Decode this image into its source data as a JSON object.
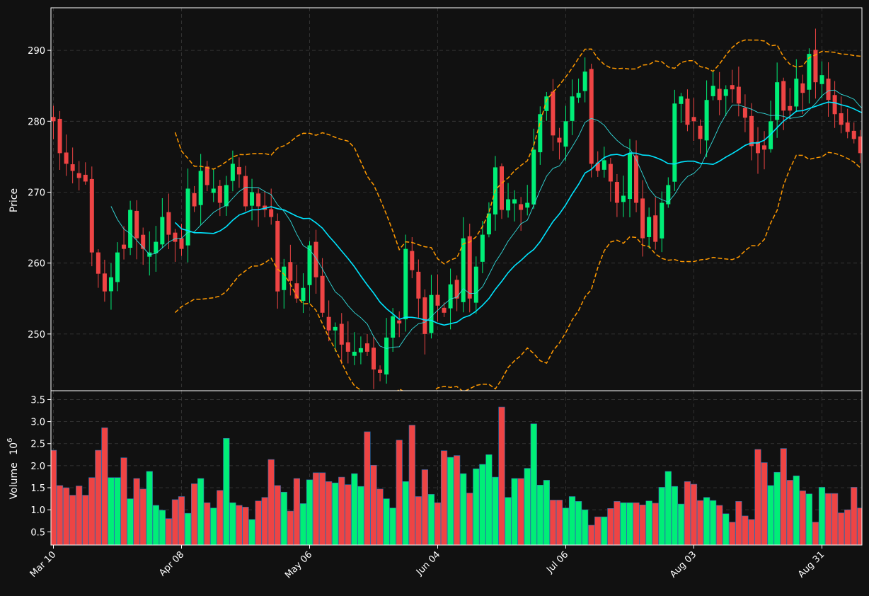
{
  "chart_data": {
    "type": "candlestick",
    "panels": {
      "price": {
        "ylabel": "Price",
        "ylim": [
          242,
          296
        ],
        "yticks": [
          250,
          260,
          270,
          280,
          290
        ]
      },
      "volume": {
        "ylabel": "Volume",
        "ylabel_exp": "6",
        "ylim": [
          0.2,
          3.7
        ],
        "yticks": [
          0.5,
          1.0,
          1.5,
          2.0,
          2.5,
          3.0,
          3.5
        ],
        "ytick_labels": [
          "0.5",
          "1.0",
          "1.5",
          "2.0",
          "2.5",
          "3.0",
          "3.5"
        ]
      }
    },
    "xticks": [
      {
        "index": 0,
        "label": "Mar 10"
      },
      {
        "index": 20,
        "label": "Apr 08"
      },
      {
        "index": 40,
        "label": "May 06"
      },
      {
        "index": 60,
        "label": "Jun 04"
      },
      {
        "index": 80,
        "label": "Jul 06"
      },
      {
        "index": 100,
        "label": "Aug 03"
      },
      {
        "index": 120,
        "label": "Aug 31"
      }
    ],
    "grid": true,
    "colors": {
      "up": "#00ee77",
      "down": "#ee4444",
      "ma_fast": "#33dddd",
      "ma_slow": "#00e5ff",
      "bands": "#ff9900",
      "background": "#111111",
      "text": "#ffffff"
    },
    "closes": [
      280.0,
      275.5,
      274.0,
      273.0,
      272.0,
      271.5,
      261.5,
      258.5,
      256.0,
      258.0,
      261.5,
      262.0,
      267.5,
      263.5,
      262.0,
      261.5,
      263.0,
      266.5,
      264.0,
      263.0,
      262.0,
      270.5,
      268.0,
      273.0,
      271.0,
      270.5,
      268.5,
      271.0,
      274.0,
      272.5,
      268.0,
      270.0,
      268.0,
      267.5,
      266.5,
      256.0,
      259.5,
      257.5,
      255.0,
      256.5,
      262.5,
      258.0,
      253.0,
      250.5,
      251.0,
      248.5,
      247.5,
      247.5,
      248.0,
      247.5,
      245.0,
      244.5,
      249.5,
      252.5,
      251.5,
      262.0,
      259.0,
      255.0,
      250.0,
      255.5,
      254.0,
      253.0,
      257.0,
      255.0,
      263.5,
      255.0,
      259.5,
      264.0,
      267.0,
      273.5,
      267.5,
      269.0,
      269.0,
      267.5,
      268.5,
      276.0,
      281.0,
      283.5,
      278.0,
      277.0,
      280.0,
      283.5,
      284.0,
      287.0,
      274.0,
      273.0,
      274.5,
      271.5,
      268.5,
      269.5,
      275.5,
      268.5,
      263.5,
      266.5,
      263.0,
      268.5,
      271.0,
      282.5,
      283.5,
      279.5,
      280.0,
      277.5,
      283.0,
      285.0,
      283.0,
      284.5,
      284.5,
      282.5,
      280.5,
      276.5,
      275.5,
      276.0,
      280.0,
      285.5,
      281.5,
      281.5,
      286.0,
      284.0,
      289.5,
      285.5,
      286.5,
      283.0,
      281.0,
      279.5,
      278.5,
      277.5,
      275.5,
      278.5,
      272.0
    ],
    "volumes": [
      2.35,
      1.55,
      1.5,
      1.33,
      1.54,
      1.33,
      1.73,
      2.35,
      2.86,
      1.73,
      1.73,
      2.18,
      1.25,
      1.71,
      1.47,
      1.87,
      1.1,
      0.99,
      0.8,
      1.23,
      1.3,
      0.92,
      1.59,
      1.71,
      1.16,
      1.04,
      1.44,
      2.62,
      1.16,
      1.1,
      1.06,
      0.78,
      1.2,
      1.28,
      2.14,
      1.55,
      1.4,
      0.97,
      1.71,
      1.14,
      1.68,
      1.84,
      1.84,
      1.64,
      1.61,
      1.74,
      1.57,
      1.82,
      1.53,
      2.77,
      2.01,
      1.47,
      1.25,
      1.04,
      2.58,
      1.64,
      2.92,
      1.3,
      1.91,
      1.35,
      1.16,
      2.34,
      2.19,
      2.23,
      1.82,
      1.38,
      1.93,
      2.03,
      2.25,
      1.74,
      3.33,
      1.28,
      1.71,
      1.71,
      1.94,
      2.95,
      1.56,
      1.67,
      1.22,
      1.22,
      1.04,
      1.3,
      1.19,
      1.0,
      0.65,
      0.84,
      0.84,
      1.03,
      1.19,
      1.16,
      1.16,
      1.16,
      1.11,
      1.2,
      1.15,
      1.51,
      1.87,
      1.53,
      1.13,
      1.64,
      1.58,
      1.21,
      1.28,
      1.21,
      1.1,
      0.91,
      0.72,
      1.19,
      0.86,
      0.78,
      2.37,
      2.07,
      1.55,
      1.85,
      2.39,
      1.67,
      1.77,
      1.43,
      1.36,
      0.72,
      1.51,
      1.37,
      1.37,
      0.93,
      1.0,
      1.51,
      1.04
    ]
  }
}
